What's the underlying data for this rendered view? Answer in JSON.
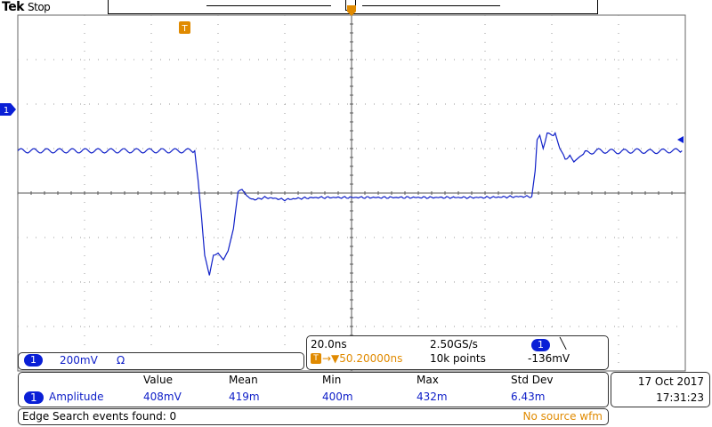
{
  "header": {
    "brand": "Tek",
    "run_state": "Stop"
  },
  "colors": {
    "waveform": "#1020c8",
    "channel1": "#0a1fd6",
    "trigger": "#e08a00",
    "grid": "#9a9a9a"
  },
  "markers": {
    "channel_marker_label": "1",
    "trigger_position_label": "T",
    "trigger_time_label": "T"
  },
  "channel": {
    "badge": "1",
    "scale": "200mV",
    "coupling": "Ω"
  },
  "timebase": {
    "time_per_div": "20.0ns",
    "sample_rate": "2.50GS/s",
    "trigger_icon": "T",
    "position": "→▼50.20000ns",
    "record_length": "10k points",
    "trigger_source_badge": "1",
    "trigger_slope": "╲",
    "trigger_level": "-136mV"
  },
  "measurement": {
    "headers": [
      "Value",
      "Mean",
      "Min",
      "Max",
      "Std Dev"
    ],
    "badge": "1",
    "name": "Amplitude",
    "values": [
      "408mV",
      "419m",
      "400m",
      "432m",
      "6.43m"
    ]
  },
  "datetime": {
    "date": "17 Oct  2017",
    "time": "17:31:23"
  },
  "search": {
    "events_text": "Edge Search events found: 0",
    "source_status": "No source wfm"
  },
  "chart_data": {
    "type": "line",
    "xlabel": "",
    "ylabel": "",
    "x_divisions": 10,
    "y_divisions": 8,
    "x_units": "divisions",
    "y_units": "divisions",
    "grid": true,
    "series": [
      {
        "values": [
          [
            0.0,
            0.95
          ],
          [
            0.25,
            0.95
          ],
          [
            0.5,
            0.95
          ],
          [
            0.75,
            0.95
          ],
          [
            1.0,
            0.95
          ],
          [
            1.25,
            0.95
          ],
          [
            1.5,
            0.95
          ],
          [
            1.75,
            0.95
          ],
          [
            2.0,
            0.95
          ],
          [
            2.25,
            0.95
          ],
          [
            2.5,
            0.95
          ],
          [
            2.65,
            0.95
          ],
          [
            2.7,
            0.3
          ],
          [
            2.75,
            -0.5
          ],
          [
            2.8,
            -1.4
          ],
          [
            2.87,
            -1.85
          ],
          [
            2.93,
            -1.4
          ],
          [
            3.0,
            -1.35
          ],
          [
            3.08,
            -1.5
          ],
          [
            3.15,
            -1.3
          ],
          [
            3.23,
            -0.8
          ],
          [
            3.3,
            0.05
          ],
          [
            3.36,
            0.08
          ],
          [
            3.45,
            -0.1
          ],
          [
            3.55,
            -0.15
          ],
          [
            3.7,
            -0.1
          ],
          [
            3.85,
            -0.12
          ],
          [
            4.0,
            -0.15
          ],
          [
            4.2,
            -0.12
          ],
          [
            4.5,
            -0.1
          ],
          [
            5.0,
            -0.1
          ],
          [
            5.5,
            -0.1
          ],
          [
            6.0,
            -0.1
          ],
          [
            6.5,
            -0.1
          ],
          [
            7.0,
            -0.1
          ],
          [
            7.5,
            -0.08
          ],
          [
            7.7,
            -0.08
          ],
          [
            7.75,
            0.5
          ],
          [
            7.78,
            1.2
          ],
          [
            7.82,
            1.3
          ],
          [
            7.87,
            1.0
          ],
          [
            7.93,
            1.3
          ],
          [
            8.05,
            1.35
          ],
          [
            8.12,
            1.0
          ],
          [
            8.2,
            0.8
          ],
          [
            8.27,
            0.85
          ],
          [
            8.33,
            0.7
          ],
          [
            8.42,
            0.82
          ],
          [
            8.5,
            0.9
          ],
          [
            8.7,
            0.95
          ],
          [
            9.0,
            0.93
          ],
          [
            9.25,
            0.95
          ],
          [
            9.5,
            0.93
          ],
          [
            9.75,
            0.95
          ],
          [
            9.95,
            0.95
          ]
        ]
      }
    ]
  }
}
